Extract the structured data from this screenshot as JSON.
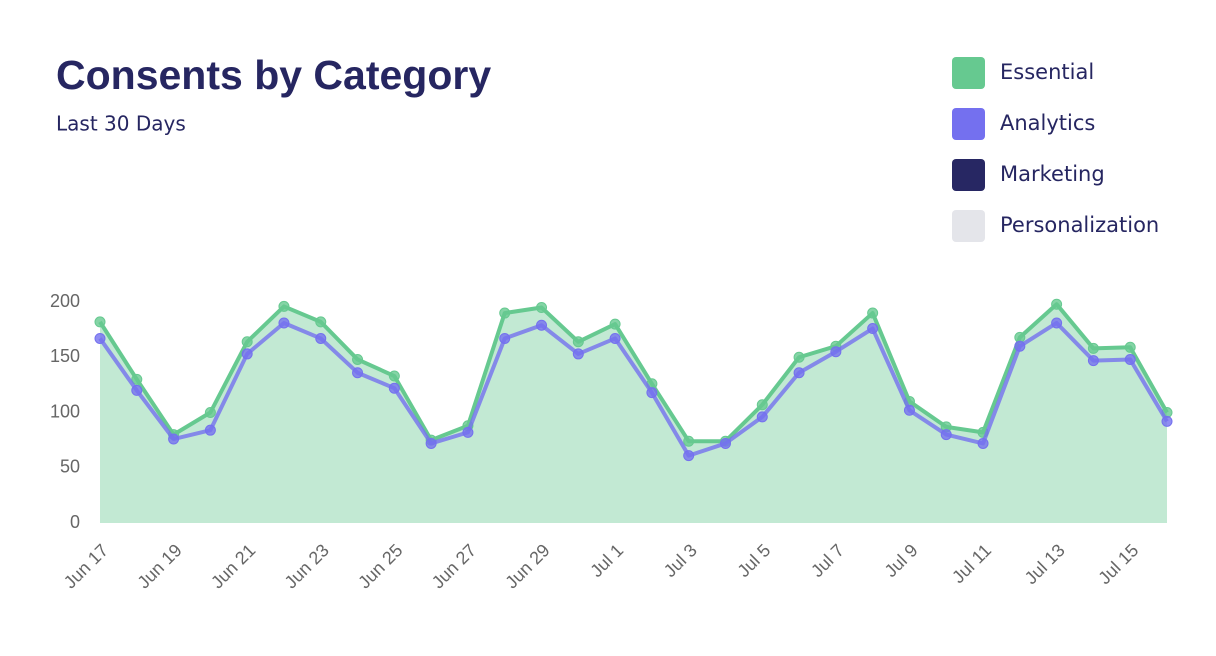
{
  "chart_data": {
    "type": "line",
    "title": "Consents by Category",
    "subtitle": "Last 30 Days",
    "categories": [
      "Jun 17",
      null,
      "Jun 19",
      null,
      "Jun 21",
      null,
      "Jun 23",
      null,
      "Jun 25",
      null,
      "Jun 27",
      null,
      "Jun 29",
      null,
      "Jul 1",
      null,
      "Jul 3",
      null,
      "Jul 5",
      null,
      "Jul 7",
      null,
      "Jul 9",
      null,
      "Jul 11",
      null,
      "Jul 13",
      null,
      "Jul 15",
      null
    ],
    "series": [
      {
        "name": "Essential",
        "color": "#66c990",
        "values": [
          182,
          130,
          80,
          100,
          164,
          196,
          182,
          148,
          133,
          75,
          88,
          190,
          195,
          164,
          180,
          126,
          74,
          74,
          107,
          150,
          160,
          190,
          110,
          87,
          82,
          168,
          198,
          158,
          159,
          100
        ]
      },
      {
        "name": "Analytics",
        "color": "#7470ef",
        "values": [
          167,
          120,
          76,
          84,
          153,
          181,
          167,
          136,
          122,
          72,
          82,
          167,
          179,
          153,
          167,
          118,
          61,
          72,
          96,
          136,
          155,
          176,
          102,
          80,
          72,
          160,
          181,
          147,
          148,
          92
        ]
      },
      {
        "name": "Marketing",
        "color": "#272763",
        "values": [
          null,
          null,
          null,
          null,
          null,
          null,
          null,
          null,
          null,
          null,
          null,
          null,
          null,
          null,
          null,
          null,
          null,
          null,
          null,
          null,
          null,
          null,
          null,
          null,
          null,
          null,
          null,
          null,
          null,
          null
        ]
      },
      {
        "name": "Personalization",
        "color": "#e4e5ea",
        "values": [
          null,
          null,
          null,
          null,
          null,
          null,
          null,
          null,
          null,
          null,
          null,
          null,
          null,
          null,
          null,
          null,
          null,
          null,
          null,
          null,
          null,
          null,
          null,
          null,
          null,
          null,
          null,
          null,
          null,
          null
        ]
      }
    ],
    "ylim": [
      0,
      200
    ],
    "yticks": [
      0,
      50,
      100,
      150,
      200
    ],
    "grid": false,
    "legend": "top-right"
  }
}
